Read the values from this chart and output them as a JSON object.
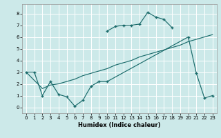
{
  "xlabel": "Humidex (Indice chaleur)",
  "xlim": [
    -0.5,
    23.5
  ],
  "ylim": [
    -0.5,
    8.8
  ],
  "xticks": [
    0,
    1,
    2,
    3,
    4,
    5,
    6,
    7,
    8,
    9,
    10,
    11,
    12,
    13,
    14,
    15,
    16,
    17,
    18,
    19,
    20,
    21,
    22,
    23
  ],
  "yticks": [
    0,
    1,
    2,
    3,
    4,
    5,
    6,
    7,
    8
  ],
  "bg_color": "#cce9e9",
  "grid_color": "#ffffff",
  "line_color": "#1a6b6b",
  "line1_x": [
    0,
    1,
    2,
    3,
    4,
    5,
    6,
    7,
    8,
    9,
    10,
    20,
    21,
    22,
    23
  ],
  "line1_y": [
    3.0,
    3.0,
    1.0,
    2.2,
    1.1,
    0.9,
    0.1,
    0.6,
    1.8,
    2.2,
    2.2,
    6.0,
    2.9,
    0.8,
    1.0
  ],
  "line2_x": [
    10,
    11,
    12,
    13,
    14,
    15,
    16,
    17,
    18
  ],
  "line2_y": [
    6.5,
    6.9,
    7.0,
    7.0,
    7.1,
    8.1,
    7.7,
    7.5,
    6.8
  ],
  "line3_x": [
    0,
    1,
    2,
    3,
    4,
    5,
    6,
    7,
    8,
    9,
    10,
    11,
    12,
    13,
    14,
    15,
    16,
    17,
    18,
    19,
    20,
    21,
    22,
    23
  ],
  "line3_y": [
    3.0,
    2.3,
    1.6,
    1.9,
    2.0,
    2.2,
    2.4,
    2.7,
    2.9,
    3.1,
    3.3,
    3.6,
    3.8,
    4.0,
    4.3,
    4.5,
    4.7,
    4.9,
    5.1,
    5.3,
    5.6,
    5.8,
    6.0,
    6.2
  ]
}
